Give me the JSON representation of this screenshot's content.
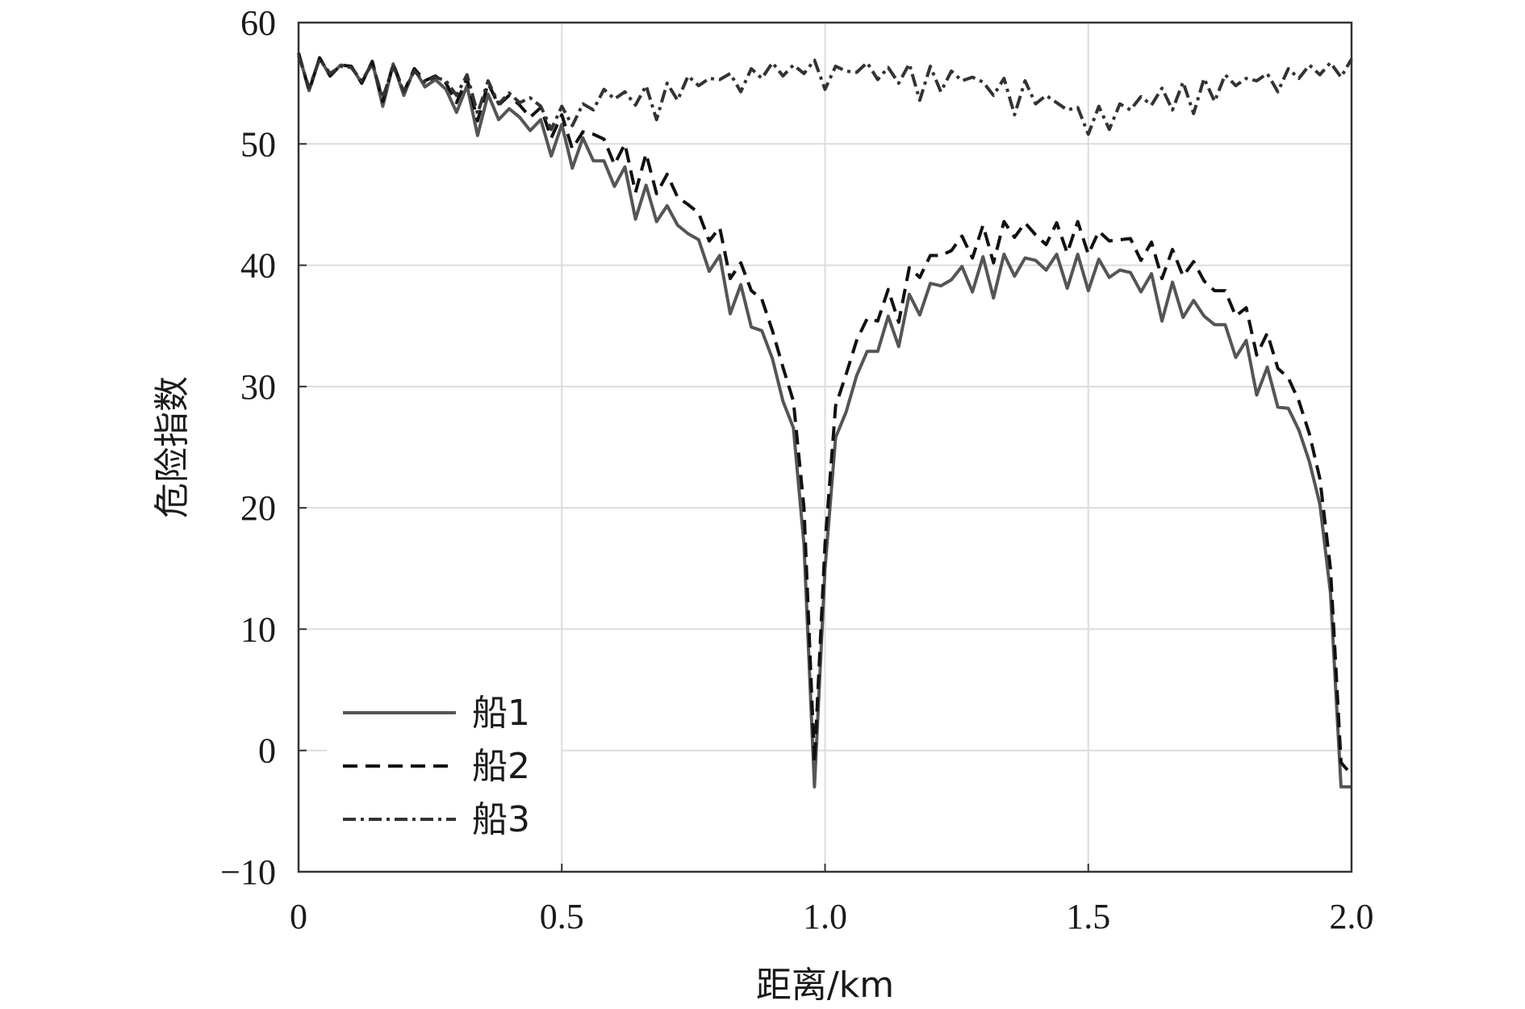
{
  "chart_data": {
    "type": "line",
    "xlabel": "距离/km",
    "ylabel": "危险指数",
    "xlim": [
      0,
      2.0
    ],
    "ylim": [
      -10,
      60
    ],
    "grid": true,
    "legend_position": "lower-left",
    "x_ticks": [
      {
        "value": 0,
        "label": "0"
      },
      {
        "value": 0.5,
        "label": "0.5"
      },
      {
        "value": 1.0,
        "label": "1.0"
      },
      {
        "value": 1.5,
        "label": "1.5"
      },
      {
        "value": 2.0,
        "label": "2.0"
      }
    ],
    "y_ticks": [
      {
        "value": -10,
        "label": "−10"
      },
      {
        "value": 0,
        "label": "0"
      },
      {
        "value": 10,
        "label": "10"
      },
      {
        "value": 20,
        "label": "20"
      },
      {
        "value": 30,
        "label": "30"
      },
      {
        "value": 40,
        "label": "40"
      },
      {
        "value": 50,
        "label": "50"
      },
      {
        "value": 60,
        "label": "60"
      }
    ],
    "x": [
      0,
      0.02,
      0.04,
      0.06,
      0.08,
      0.1,
      0.12,
      0.14,
      0.16,
      0.18,
      0.2,
      0.22,
      0.24,
      0.26,
      0.28,
      0.3,
      0.32,
      0.34,
      0.36,
      0.38,
      0.4,
      0.42,
      0.44,
      0.46,
      0.48,
      0.5,
      0.52,
      0.54,
      0.56,
      0.58,
      0.6,
      0.62,
      0.64,
      0.66,
      0.68,
      0.7,
      0.72,
      0.74,
      0.76,
      0.78,
      0.8,
      0.82,
      0.84,
      0.86,
      0.88,
      0.9,
      0.92,
      0.94,
      0.96,
      0.98,
      1.0,
      1.02,
      1.04,
      1.06,
      1.08,
      1.1,
      1.12,
      1.14,
      1.16,
      1.18,
      1.2,
      1.22,
      1.24,
      1.26,
      1.28,
      1.3,
      1.32,
      1.34,
      1.36,
      1.38,
      1.4,
      1.42,
      1.44,
      1.46,
      1.48,
      1.5,
      1.52,
      1.54,
      1.56,
      1.58,
      1.6,
      1.62,
      1.64,
      1.66,
      1.68,
      1.7,
      1.72,
      1.74,
      1.76,
      1.78,
      1.8,
      1.82,
      1.84,
      1.86,
      1.88,
      1.9,
      1.92,
      1.94,
      1.96,
      1.98,
      2.0
    ],
    "series": [
      {
        "name": "船1",
        "color": "#555555",
        "dash": "solid",
        "values": [
          57.5,
          54.4,
          57.1,
          55.6,
          56.5,
          56.4,
          55.0,
          56.8,
          53.1,
          56.6,
          54.0,
          56.2,
          54.7,
          55.3,
          54.5,
          52.6,
          54.8,
          50.7,
          54.1,
          52.0,
          52.9,
          52.2,
          51.1,
          52.0,
          49.0,
          51.6,
          48.0,
          50.5,
          48.6,
          48.6,
          46.5,
          48.1,
          43.8,
          46.6,
          43.6,
          44.9,
          43.3,
          42.6,
          42.1,
          39.5,
          40.8,
          36.0,
          38.4,
          34.9,
          34.6,
          32.3,
          28.8,
          26.6,
          17.0,
          -3.0,
          15.0,
          25.8,
          27.9,
          30.9,
          32.9,
          32.9,
          35.8,
          33.3,
          37.6,
          35.9,
          38.5,
          38.3,
          38.8,
          39.9,
          37.8,
          40.7,
          37.3,
          40.9,
          39.1,
          40.6,
          40.4,
          39.6,
          40.9,
          38.1,
          40.9,
          37.9,
          40.5,
          39.0,
          39.6,
          39.4,
          37.8,
          39.3,
          35.4,
          38.6,
          35.7,
          37.1,
          35.8,
          35.1,
          35.1,
          32.4,
          33.8,
          29.3,
          31.6,
          28.3,
          28.2,
          26.4,
          23.8,
          20.3,
          13.0,
          -3.0,
          -3.0
        ]
      },
      {
        "name": "船2",
        "color": "#111111",
        "dash": "dashed",
        "values": [
          57.5,
          54.4,
          57.1,
          55.6,
          56.5,
          56.4,
          55.0,
          56.8,
          53.5,
          56.6,
          54.3,
          56.2,
          55.2,
          55.6,
          55.0,
          53.4,
          55.4,
          51.9,
          55.0,
          53.2,
          54.0,
          53.2,
          52.2,
          53.0,
          50.5,
          52.4,
          49.6,
          51.0,
          50.8,
          50.4,
          48.3,
          50.0,
          46.0,
          49.2,
          45.9,
          47.5,
          45.6,
          45.0,
          44.3,
          42.0,
          43.1,
          38.9,
          40.2,
          37.9,
          37.2,
          34.6,
          31.6,
          28.8,
          20.0,
          -1.0,
          17.0,
          28.4,
          31.0,
          33.8,
          35.6,
          35.4,
          38.0,
          35.3,
          39.8,
          39.0,
          40.8,
          40.8,
          41.2,
          42.4,
          40.6,
          43.3,
          40.2,
          43.6,
          42.3,
          43.5,
          42.5,
          41.7,
          43.5,
          41.0,
          43.6,
          40.9,
          42.8,
          42.0,
          42.1,
          42.2,
          40.4,
          41.9,
          38.9,
          41.3,
          39.1,
          40.3,
          38.7,
          37.9,
          37.9,
          35.8,
          36.5,
          32.6,
          34.4,
          31.5,
          30.7,
          28.8,
          26.1,
          22.4,
          15.0,
          -1.0,
          -2.0
        ]
      },
      {
        "name": "船3",
        "color": "#333333",
        "dash": "dashdot",
        "values": [
          57.3,
          54.6,
          57.0,
          55.8,
          56.4,
          56.3,
          55.2,
          56.6,
          53.8,
          56.4,
          54.3,
          56.0,
          55.1,
          55.5,
          55.2,
          54.0,
          55.7,
          52.5,
          55.2,
          53.3,
          54.2,
          53.4,
          53.8,
          53.1,
          51.2,
          53.1,
          51.5,
          53.3,
          52.8,
          54.5,
          53.7,
          54.3,
          53.2,
          54.8,
          52.0,
          55.0,
          53.6,
          55.6,
          54.8,
          55.4,
          55.3,
          55.8,
          54.3,
          56.2,
          55.4,
          56.7,
          55.6,
          56.5,
          55.8,
          56.9,
          54.5,
          56.4,
          56.0,
          55.9,
          56.7,
          55.3,
          56.3,
          55.0,
          56.6,
          53.6,
          56.4,
          54.3,
          56.0,
          55.2,
          55.5,
          55.1,
          54.0,
          55.4,
          52.4,
          55.2,
          53.3,
          54.0,
          53.4,
          52.8,
          53.0,
          50.8,
          53.1,
          51.2,
          53.3,
          52.8,
          53.9,
          53.2,
          54.6,
          52.8,
          55.1,
          52.5,
          55.4,
          53.5,
          55.7,
          54.8,
          55.4,
          55.2,
          55.8,
          54.3,
          56.2,
          55.4,
          56.5,
          55.7,
          56.7,
          55.5,
          57.0
        ]
      }
    ]
  }
}
